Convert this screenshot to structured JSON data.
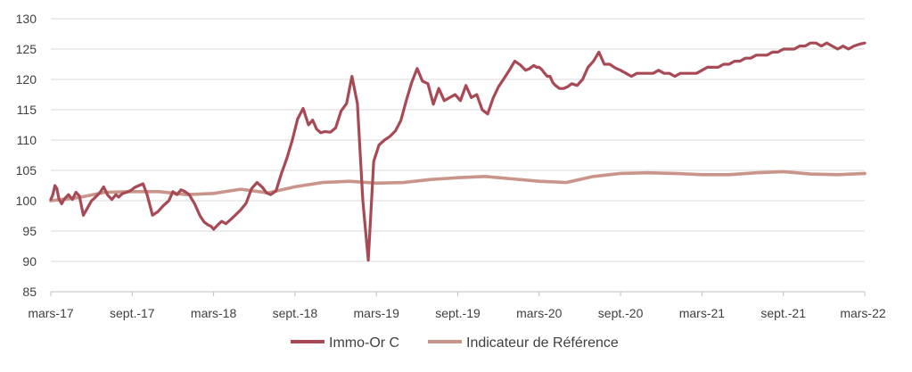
{
  "chart_data": {
    "type": "line",
    "title": "",
    "xlabel": "",
    "ylabel": "",
    "ylim": [
      85,
      130
    ],
    "yticks": [
      85,
      90,
      95,
      100,
      105,
      110,
      115,
      120,
      125,
      130
    ],
    "x_tick_labels": [
      "mars-17",
      "sept.-17",
      "mars-18",
      "sept.-18",
      "mars-19",
      "sept.-19",
      "mars-20",
      "sept.-20",
      "mars-21",
      "sept.-21",
      "mars-22"
    ],
    "grid": "horizontal",
    "legend_position": "bottom-center",
    "colors": {
      "immo_or": "#a84a55",
      "benchmark": "#c9948a",
      "grid": "#d9d9d9",
      "axis": "#bfbfbf"
    },
    "series": [
      {
        "name": "Immo-Or C",
        "key": "immo_or",
        "x": [
          0,
          0.15,
          0.3,
          0.45,
          0.6,
          0.8,
          1.0,
          1.3,
          1.6,
          1.85,
          2.1,
          2.4,
          2.7,
          3.0,
          3.3,
          3.6,
          3.9,
          4.2,
          4.5,
          4.8,
          5.0,
          5.3,
          5.6,
          5.9,
          6.2,
          6.5,
          6.8,
          7.1,
          7.5,
          7.9,
          8.3,
          8.7,
          9.0,
          9.3,
          9.6,
          9.9,
          10.2,
          10.6,
          11.0,
          11.3,
          11.6,
          11.8,
          12.0,
          12.3,
          12.6,
          12.9,
          13.2,
          13.6,
          14.0,
          14.4,
          14.8,
          15.2,
          15.6,
          15.9,
          16.2,
          16.6,
          17.0,
          17.4,
          17.8,
          18.2,
          18.6,
          19.0,
          19.3,
          19.6,
          19.9,
          20.2,
          20.6,
          21.0,
          21.4,
          21.8,
          22.2,
          22.6,
          23.0,
          23.4,
          23.8,
          24.2,
          24.6,
          25.0,
          25.4,
          25.8,
          26.2,
          26.6,
          27.0,
          27.4,
          27.8,
          28.2,
          28.6,
          29.0,
          29.4,
          29.8,
          30.2,
          30.6,
          31.0,
          31.4,
          31.8,
          32.2,
          32.6,
          33.0,
          33.4,
          33.8,
          34.2,
          34.6,
          35.0,
          35.3,
          35.6,
          35.8,
          36.0,
          36.2,
          36.4,
          36.6,
          36.8,
          37.0,
          37.2,
          37.5,
          37.8,
          38.1,
          38.4,
          38.8,
          39.2,
          39.6,
          40.0,
          40.4,
          40.8,
          41.2,
          41.6,
          42.0,
          42.4,
          42.8,
          43.2,
          43.6,
          44.0,
          44.4,
          44.8,
          45.2,
          45.6,
          46.0,
          46.4,
          46.8,
          47.2,
          47.6,
          48.0,
          48.4,
          48.8,
          49.2,
          49.6,
          50.0,
          50.4,
          50.8,
          51.2,
          51.6,
          52.0,
          52.4,
          52.8,
          53.2,
          53.6,
          54.0,
          54.4,
          54.8,
          55.2,
          55.6,
          56.0,
          56.4,
          56.8,
          57.2,
          57.6,
          58.0,
          58.4,
          58.8,
          59.2,
          59.6,
          60.0
        ],
        "y": [
          100.2,
          101.0,
          102.5,
          102.0,
          100.3,
          99.5,
          100.3,
          101.0,
          100.2,
          101.4,
          100.8,
          97.6,
          98.8,
          100.0,
          100.6,
          101.3,
          102.3,
          100.9,
          100.2,
          101.0,
          100.6,
          101.2,
          101.4,
          101.7,
          102.2,
          102.5,
          102.8,
          101.0,
          97.6,
          98.2,
          99.2,
          100.0,
          101.5,
          101.0,
          101.8,
          101.5,
          101.0,
          99.5,
          97.5,
          96.5,
          96.0,
          95.8,
          95.3,
          96.0,
          96.6,
          96.2,
          96.8,
          97.6,
          98.5,
          99.6,
          102.0,
          103.0,
          102.2,
          101.3,
          101.0,
          101.6,
          104.5,
          107.0,
          110.0,
          113.5,
          115.2,
          112.5,
          113.3,
          111.8,
          111.2,
          111.4,
          111.3,
          112.0,
          114.8,
          116.0,
          120.5,
          116.0,
          100.0,
          90.2,
          106.5,
          109.2,
          110.0,
          110.6,
          111.5,
          113.2,
          116.5,
          119.5,
          121.8,
          119.7,
          119.3,
          115.9,
          118.5,
          116.5,
          117.0,
          117.5,
          116.5,
          119.0,
          117.0,
          117.5,
          115.0,
          114.3,
          116.9,
          118.8,
          120.1,
          121.5,
          123.0,
          122.4,
          121.5,
          121.8,
          122.3,
          122.0,
          122.0,
          121.6,
          121.0,
          120.5,
          120.5,
          119.5,
          119.0,
          118.5,
          118.5,
          118.8,
          119.3,
          119.0,
          120.0,
          122.0,
          123.0,
          124.5,
          122.5,
          122.5,
          121.9,
          121.5,
          121.0,
          120.5,
          121.0,
          121.0,
          121.0,
          121.0,
          121.5,
          121.0,
          121.0,
          120.5,
          121.0,
          121.0,
          121.0,
          121.0,
          121.5,
          122.0,
          122.0,
          122.0,
          122.5,
          122.5,
          123.0,
          123.0,
          123.5,
          123.5,
          124.0,
          124.0,
          124.0,
          124.5,
          124.5,
          125.0,
          125.0,
          125.0,
          125.5,
          125.5,
          126.0,
          126.0,
          125.5,
          126.0,
          125.5,
          125.0,
          125.5,
          125.0,
          125.5,
          125.8,
          126.0
        ]
      },
      {
        "name": "Indicateur de Référence",
        "key": "benchmark",
        "x": [
          0,
          2,
          4,
          6,
          8,
          10,
          12,
          14,
          16,
          18,
          20,
          22,
          24,
          26,
          28,
          30,
          32,
          34,
          36,
          38,
          40,
          42,
          44,
          46,
          48,
          50,
          52,
          54,
          56,
          58,
          60
        ],
        "y": [
          100.0,
          100.5,
          101.4,
          101.5,
          101.5,
          101.0,
          101.2,
          101.9,
          101.3,
          102.3,
          103.0,
          103.2,
          102.9,
          103.0,
          103.5,
          103.8,
          104.0,
          103.6,
          103.2,
          103.0,
          104.0,
          104.5,
          104.6,
          104.5,
          104.3,
          104.3,
          104.6,
          104.8,
          104.4,
          104.3,
          104.5
        ]
      }
    ]
  }
}
